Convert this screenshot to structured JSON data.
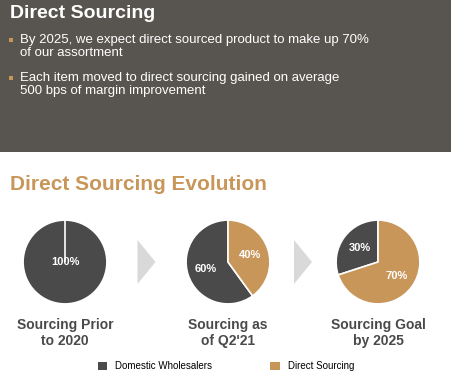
{
  "header": {
    "title": "Direct Sourcing",
    "bullets": [
      "By 2025, we expect direct sourced product to make up 70%\nof our assortment",
      "Each item moved to direct sourcing gained on average\n500 bps of margin improvement"
    ]
  },
  "section_title": "Direct Sourcing Evolution",
  "chart_data": [
    {
      "type": "pie",
      "title": "Sourcing Prior\nto 2020",
      "categories": [
        "Domestic Wholesalers",
        "Direct Sourcing"
      ],
      "values": [
        100,
        0
      ],
      "value_labels": [
        "100%",
        null
      ],
      "colors": [
        "#4a4a4a",
        "#c9965a"
      ],
      "data_labels": true,
      "legend": "lower center"
    },
    {
      "type": "pie",
      "title": "Sourcing as\nof Q2'21",
      "categories": [
        "Domestic Wholesalers",
        "Direct Sourcing"
      ],
      "values": [
        60,
        40
      ],
      "value_labels": [
        "60%",
        "40%"
      ],
      "colors": [
        "#4a4a4a",
        "#c9965a"
      ],
      "data_labels": true
    },
    {
      "type": "pie",
      "title": "Sourcing Goal\nby 2025",
      "categories": [
        "Domestic Wholesalers",
        "Direct Sourcing"
      ],
      "values": [
        30,
        70
      ],
      "value_labels": [
        "30%",
        "70%"
      ],
      "colors": [
        "#4a4a4a",
        "#c9965a"
      ],
      "data_labels": true
    }
  ]
}
